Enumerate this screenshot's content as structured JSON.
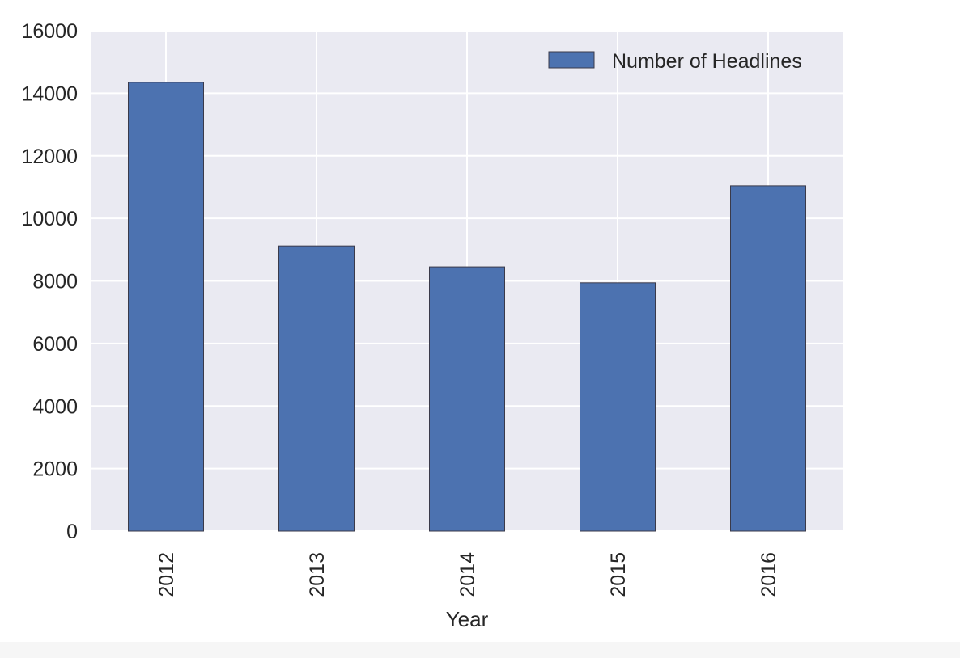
{
  "chart_data": {
    "type": "bar",
    "title": "",
    "xlabel": "Year",
    "ylabel": "",
    "categories": [
      "2012",
      "2013",
      "2014",
      "2015",
      "2016"
    ],
    "series": [
      {
        "name": "Number of Headlines",
        "values": [
          14350,
          9120,
          8450,
          7940,
          11040
        ]
      }
    ],
    "ylim": [
      0,
      16000
    ],
    "yticks": [
      0,
      2000,
      4000,
      6000,
      8000,
      10000,
      12000,
      14000,
      16000
    ],
    "grid": true,
    "legend_position": "top-right",
    "colors": {
      "bar_fill": "#4c72b0",
      "bar_edge": "#3a3a4a",
      "plot_background": "#eaeaf2",
      "grid": "#ffffff"
    }
  }
}
